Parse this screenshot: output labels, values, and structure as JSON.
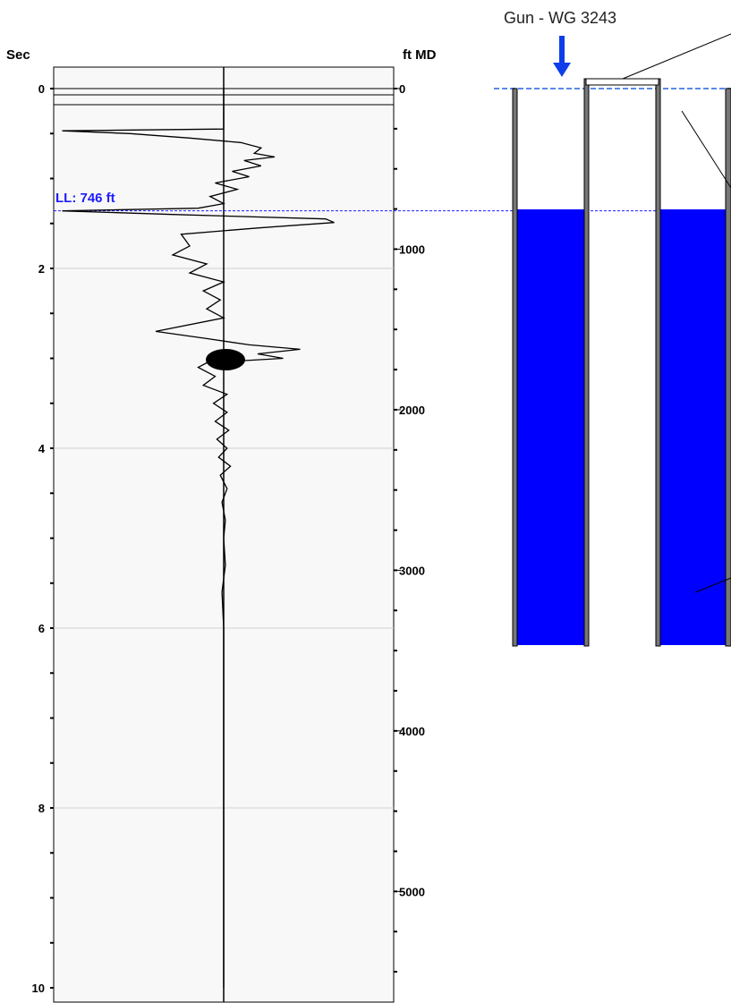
{
  "chart_data": {
    "type": "line",
    "title": "",
    "left_axis": {
      "label": "Sec",
      "range": [
        0,
        10
      ],
      "ticks": [
        "0",
        "2",
        "4",
        "6",
        "8",
        "10"
      ]
    },
    "right_axis": {
      "label": "ft MD",
      "range": [
        0,
        5600
      ],
      "ticks": [
        "0",
        "1000",
        "2000",
        "3000",
        "4000",
        "5000"
      ]
    },
    "grid": true,
    "liquid_level": {
      "label": "LL: 746 ft",
      "depth_ft": 746,
      "time_sec": 1.36
    },
    "trace": {
      "description_units": "x = relative deflection (-1 left .. 1 right), y = seconds",
      "points": [
        [
          0.0,
          0.0
        ],
        [
          0.0,
          0.45
        ],
        [
          -0.95,
          0.47
        ],
        [
          -0.55,
          0.5
        ],
        [
          -0.2,
          0.55
        ],
        [
          0.1,
          0.6
        ],
        [
          0.22,
          0.66
        ],
        [
          0.18,
          0.72
        ],
        [
          0.3,
          0.76
        ],
        [
          0.12,
          0.8
        ],
        [
          0.22,
          0.86
        ],
        [
          0.05,
          0.92
        ],
        [
          0.15,
          0.98
        ],
        [
          -0.05,
          1.05
        ],
        [
          0.08,
          1.12
        ],
        [
          -0.08,
          1.2
        ],
        [
          0.0,
          1.28
        ],
        [
          -0.15,
          1.33
        ],
        [
          -0.95,
          1.36
        ],
        [
          -0.3,
          1.4
        ],
        [
          0.6,
          1.45
        ],
        [
          0.65,
          1.49
        ],
        [
          0.2,
          1.55
        ],
        [
          -0.25,
          1.62
        ],
        [
          -0.2,
          1.75
        ],
        [
          -0.3,
          1.85
        ],
        [
          -0.1,
          1.95
        ],
        [
          -0.2,
          2.05
        ],
        [
          0.0,
          2.15
        ],
        [
          -0.12,
          2.25
        ],
        [
          -0.02,
          2.35
        ],
        [
          -0.1,
          2.45
        ],
        [
          0.0,
          2.55
        ],
        [
          -0.4,
          2.7
        ],
        [
          -0.1,
          2.78
        ],
        [
          0.15,
          2.85
        ],
        [
          0.45,
          2.9
        ],
        [
          0.2,
          2.95
        ],
        [
          0.35,
          3.0
        ],
        [
          -0.1,
          3.05
        ],
        [
          -0.15,
          3.1
        ],
        [
          -0.05,
          3.2
        ],
        [
          -0.12,
          3.3
        ],
        [
          0.02,
          3.4
        ],
        [
          -0.06,
          3.5
        ],
        [
          0.02,
          3.6
        ],
        [
          -0.05,
          3.7
        ],
        [
          0.03,
          3.8
        ],
        [
          -0.04,
          3.9
        ],
        [
          0.02,
          4.0
        ],
        [
          -0.03,
          4.1
        ],
        [
          0.04,
          4.2
        ],
        [
          -0.02,
          4.3
        ],
        [
          0.02,
          4.45
        ],
        [
          -0.01,
          4.6
        ],
        [
          0.01,
          4.8
        ],
        [
          0.0,
          5.0
        ],
        [
          0.01,
          5.3
        ],
        [
          -0.01,
          5.6
        ],
        [
          0.0,
          6.0
        ],
        [
          0.0,
          7.0
        ],
        [
          0.0,
          8.0
        ],
        [
          0.0,
          9.0
        ],
        [
          0.0,
          10.0
        ]
      ]
    }
  },
  "wellbore": {
    "gun_label": "Gun - WG 3243",
    "fluid_color": "#0000ff",
    "annotation_color": "#1d1dff"
  }
}
